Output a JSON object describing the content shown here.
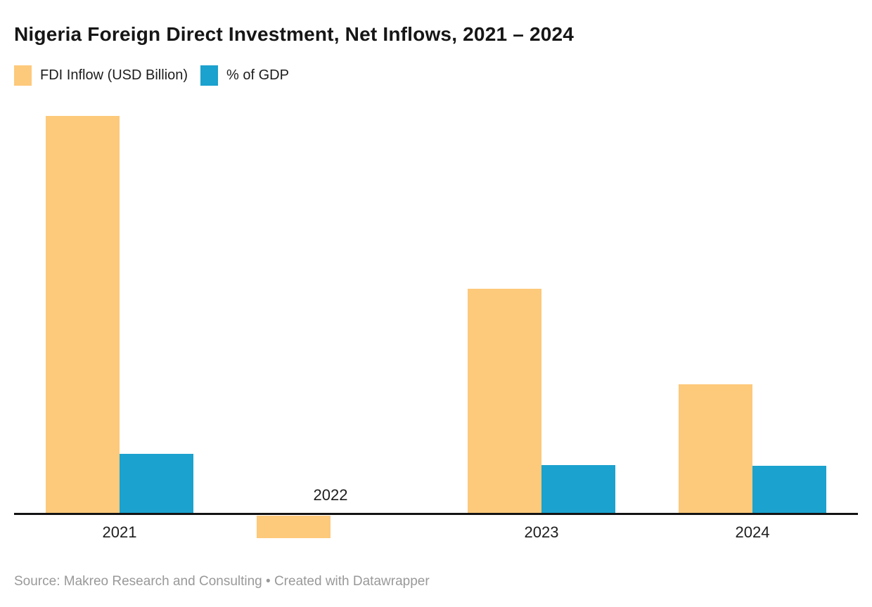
{
  "header": {
    "title": "Nigeria Foreign Direct Investment, Net Inflows, 2021 – 2024"
  },
  "footer": {
    "source": "Source: Makreo Research and Consulting • Created with Datawrapper"
  },
  "chart_data": {
    "type": "bar",
    "title": "Nigeria Foreign Direct Investment, Net Inflows, 2021 – 2024",
    "categories": [
      "2021",
      "2022",
      "2023",
      "2024"
    ],
    "series": [
      {
        "name": "FDI Inflow (USD Billion)",
        "color": "#FDC97B",
        "values": [
          3.3,
          -0.19,
          1.87,
          1.08
        ]
      },
      {
        "name": "% of GDP",
        "color": "#1BA2CE",
        "values": [
          0.5,
          0,
          0.41,
          0.4
        ]
      }
    ],
    "xlabel": "",
    "ylabel": "",
    "ylim": [
      -0.3,
      3.45
    ],
    "baseline": 0,
    "grid": false,
    "y_axis_labels_shown": false,
    "legend_position": "top-left",
    "axis_color": "#131313",
    "negative_label_above_axis": "2022"
  }
}
